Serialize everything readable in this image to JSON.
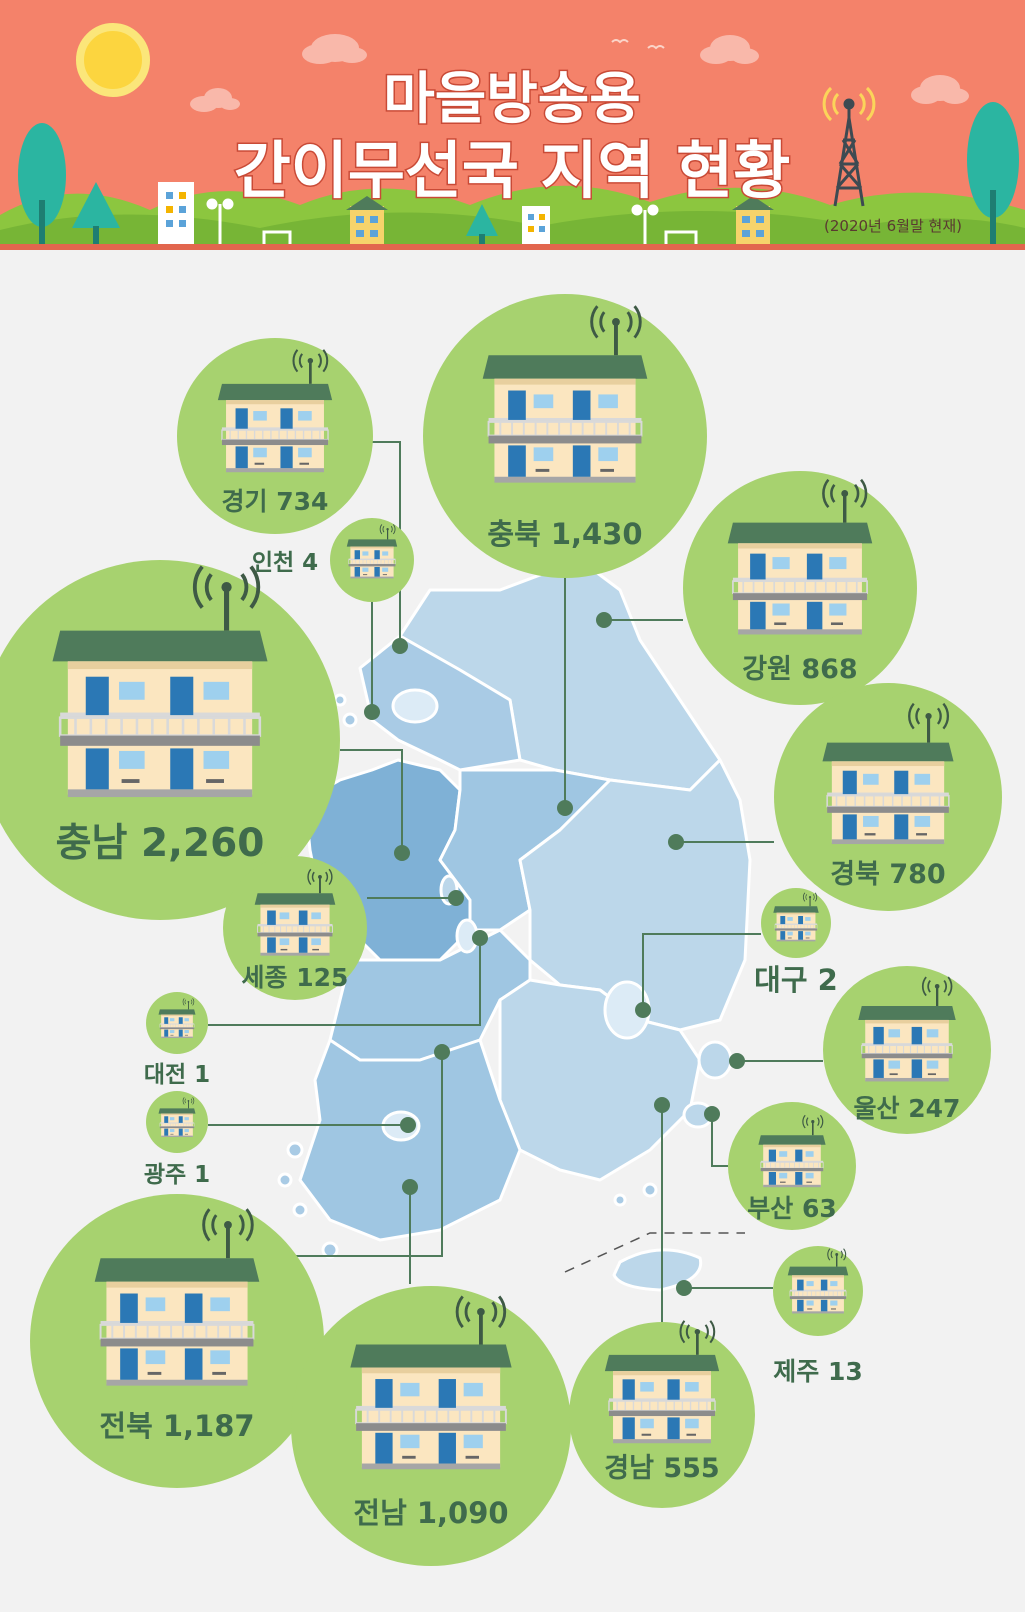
{
  "header": {
    "title_line1": "마을방송용",
    "title_line2": "간이무선국 지역 현황",
    "date_note": "(2020년 6월말 현재)"
  },
  "colors": {
    "header_bg": "#f4826a",
    "circle": "#a7d26f",
    "house_roof": "#4f7b5b",
    "house_wall": "#fbe6c0",
    "window": "#2b78b5",
    "map_light": "#bcd7ea",
    "map_mid": "#9fc6e2",
    "map_dark": "#7fb1d6",
    "label": "#3f6b4c",
    "line": "#4f7b5b"
  },
  "regions": [
    {
      "id": "gyeonggi",
      "name": "경기",
      "value": 734,
      "display": "경기 734"
    },
    {
      "id": "incheon",
      "name": "인천",
      "value": 4,
      "display": "인천 4"
    },
    {
      "id": "chungbuk",
      "name": "충북",
      "value": 1430,
      "display": "충북 1,430"
    },
    {
      "id": "gangwon",
      "name": "강원",
      "value": 868,
      "display": "강원 868"
    },
    {
      "id": "chungnam",
      "name": "충남",
      "value": 2260,
      "display": "충남 2,260"
    },
    {
      "id": "gyeongbuk",
      "name": "경북",
      "value": 780,
      "display": "경북 780"
    },
    {
      "id": "sejong",
      "name": "세종",
      "value": 125,
      "display": "세종 125"
    },
    {
      "id": "daegu",
      "name": "대구",
      "value": 2,
      "display": "대구 2"
    },
    {
      "id": "daejeon",
      "name": "대전",
      "value": 1,
      "display": "대전 1"
    },
    {
      "id": "ulsan",
      "name": "울산",
      "value": 247,
      "display": "울산 247"
    },
    {
      "id": "gwangju",
      "name": "광주",
      "value": 1,
      "display": "광주 1"
    },
    {
      "id": "busan",
      "name": "부산",
      "value": 63,
      "display": "부산 63"
    },
    {
      "id": "jeju",
      "name": "제주",
      "value": 13,
      "display": "제주 13"
    },
    {
      "id": "jeonbuk",
      "name": "전북",
      "value": 1187,
      "display": "전북 1,187"
    },
    {
      "id": "jeonnam",
      "name": "전남",
      "value": 1090,
      "display": "전남 1,090"
    },
    {
      "id": "gyeongnam",
      "name": "경남",
      "value": 555,
      "display": "경남 555"
    }
  ]
}
